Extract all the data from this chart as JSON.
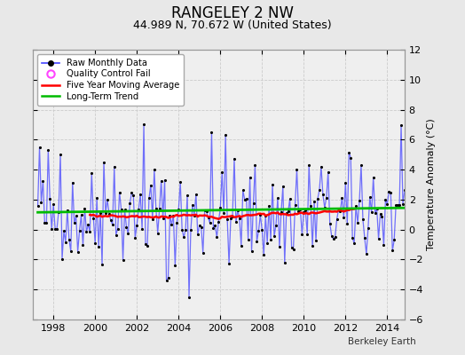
{
  "title": "RANGELEY 2 NW",
  "subtitle": "44.989 N, 70.672 W (United States)",
  "ylabel": "Temperature Anomaly (°C)",
  "watermark": "Berkeley Earth",
  "xlim": [
    1997.0,
    2014.83
  ],
  "ylim": [
    -6,
    12
  ],
  "yticks": [
    -6,
    -4,
    -2,
    0,
    2,
    4,
    6,
    8,
    10,
    12
  ],
  "xticks": [
    1998,
    2000,
    2002,
    2004,
    2006,
    2008,
    2010,
    2012,
    2014
  ],
  "bg_color": "#e8e8e8",
  "plot_bg_color": "#efefef",
  "raw_color": "#4444ff",
  "raw_marker_color": "#000000",
  "moving_avg_color": "#ff0000",
  "trend_color": "#00bb00",
  "legend_qc_color": "#ff44ff",
  "seed": 42,
  "trend_val": 1.3,
  "moving_avg_window": 60,
  "title_fontsize": 12,
  "subtitle_fontsize": 9,
  "tick_labelsize": 8,
  "ylabel_fontsize": 8
}
